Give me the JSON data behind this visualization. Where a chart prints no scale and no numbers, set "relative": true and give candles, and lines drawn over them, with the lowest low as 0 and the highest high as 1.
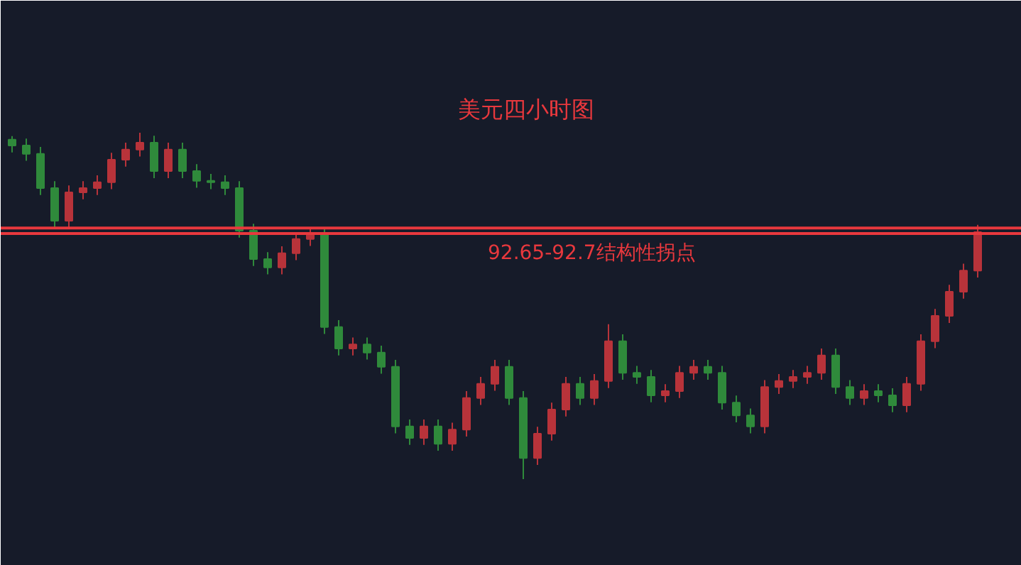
{
  "chart_data": {
    "type": "candlestick",
    "title": "美元四小时图",
    "relative": true,
    "annotations": [
      "92.65-92.7结构性拐点"
    ],
    "categories": [
      null,
      null,
      null,
      null,
      null,
      null,
      null,
      null,
      null,
      null,
      null,
      null,
      null,
      null,
      null,
      null,
      null,
      null,
      null,
      null,
      null,
      null,
      null,
      null,
      null,
      null,
      null,
      null,
      null,
      null,
      null,
      null,
      null,
      null,
      null,
      null,
      null,
      null,
      null,
      null,
      null,
      null,
      null,
      null,
      null,
      null,
      null,
      null,
      null,
      null,
      null,
      null,
      null,
      null,
      null,
      null,
      null,
      null,
      null,
      null,
      null,
      null,
      null,
      null,
      null,
      null,
      null,
      null,
      null
    ],
    "ohlc": [
      [
        0.98,
        0.99,
        0.943,
        0.963
      ],
      [
        0.963,
        0.983,
        0.919,
        0.939
      ],
      [
        0.939,
        0.959,
        0.82,
        0.84
      ],
      [
        0.84,
        0.86,
        0.726,
        0.746
      ],
      [
        0.746,
        0.848,
        0.726,
        0.828
      ],
      [
        0.828,
        0.86,
        0.808,
        0.84
      ],
      [
        0.84,
        0.877,
        0.82,
        0.857
      ],
      [
        0.857,
        0.942,
        0.837,
        0.922
      ],
      [
        0.922,
        0.971,
        0.902,
        0.951
      ],
      [
        0.951,
        1.0,
        0.931,
        0.971
      ],
      [
        0.971,
        0.991,
        0.869,
        0.889
      ],
      [
        0.889,
        0.971,
        0.869,
        0.951
      ],
      [
        0.951,
        0.971,
        0.869,
        0.889
      ],
      [
        0.889,
        0.909,
        0.841,
        0.861
      ],
      [
        0.861,
        0.881,
        0.837,
        0.857
      ],
      [
        0.857,
        0.877,
        0.82,
        0.84
      ],
      [
        0.84,
        0.86,
        0.697,
        0.717
      ],
      [
        0.717,
        0.737,
        0.615,
        0.635
      ],
      [
        0.635,
        0.655,
        0.591,
        0.611
      ],
      [
        0.611,
        0.672,
        0.591,
        0.652
      ],
      [
        0.652,
        0.713,
        0.632,
        0.693
      ],
      [
        0.693,
        0.725,
        0.673,
        0.705
      ],
      [
        0.705,
        0.725,
        0.419,
        0.439
      ],
      [
        0.439,
        0.459,
        0.357,
        0.377
      ],
      [
        0.377,
        0.409,
        0.357,
        0.389
      ],
      [
        0.389,
        0.409,
        0.345,
        0.365
      ],
      [
        0.365,
        0.385,
        0.304,
        0.324
      ],
      [
        0.324,
        0.344,
        0.132,
        0.152
      ],
      [
        0.152,
        0.172,
        0.099,
        0.119
      ],
      [
        0.119,
        0.172,
        0.099,
        0.152
      ],
      [
        0.152,
        0.172,
        0.082,
        0.102
      ],
      [
        0.102,
        0.163,
        0.082,
        0.143
      ],
      [
        0.143,
        0.254,
        0.123,
        0.234
      ],
      [
        0.234,
        0.295,
        0.214,
        0.275
      ],
      [
        0.275,
        0.344,
        0.255,
        0.324
      ],
      [
        0.324,
        0.344,
        0.214,
        0.234
      ],
      [
        0.234,
        0.254,
        0.0,
        0.061
      ],
      [
        0.061,
        0.151,
        0.041,
        0.131
      ],
      [
        0.131,
        0.221,
        0.111,
        0.201
      ],
      [
        0.201,
        0.295,
        0.181,
        0.275
      ],
      [
        0.275,
        0.295,
        0.214,
        0.234
      ],
      [
        0.234,
        0.303,
        0.214,
        0.283
      ],
      [
        0.283,
        0.447,
        0.263,
        0.398
      ],
      [
        0.398,
        0.418,
        0.287,
        0.307
      ],
      [
        0.307,
        0.327,
        0.275,
        0.295
      ],
      [
        0.295,
        0.315,
        0.222,
        0.242
      ],
      [
        0.242,
        0.274,
        0.222,
        0.254
      ],
      [
        0.254,
        0.327,
        0.234,
        0.307
      ],
      [
        0.307,
        0.344,
        0.287,
        0.324
      ],
      [
        0.324,
        0.344,
        0.287,
        0.307
      ],
      [
        0.307,
        0.327,
        0.201,
        0.221
      ],
      [
        0.221,
        0.241,
        0.164,
        0.184
      ],
      [
        0.184,
        0.204,
        0.132,
        0.152
      ],
      [
        0.152,
        0.286,
        0.132,
        0.266
      ],
      [
        0.266,
        0.303,
        0.246,
        0.283
      ],
      [
        0.283,
        0.315,
        0.263,
        0.295
      ],
      [
        0.295,
        0.327,
        0.275,
        0.307
      ],
      [
        0.307,
        0.377,
        0.287,
        0.357
      ],
      [
        0.357,
        0.377,
        0.246,
        0.266
      ],
      [
        0.266,
        0.286,
        0.214,
        0.234
      ],
      [
        0.234,
        0.274,
        0.214,
        0.254
      ],
      [
        0.254,
        0.274,
        0.222,
        0.242
      ],
      [
        0.242,
        0.262,
        0.193,
        0.213
      ],
      [
        0.213,
        0.295,
        0.193,
        0.275
      ],
      [
        0.275,
        0.418,
        0.255,
        0.398
      ],
      [
        0.398,
        0.491,
        0.378,
        0.471
      ],
      [
        0.471,
        0.561,
        0.451,
        0.541
      ],
      [
        0.541,
        0.622,
        0.521,
        0.602
      ],
      [
        0.602,
        0.734,
        0.582,
        0.713
      ]
    ],
    "colors": [
      "#2f8a3b",
      "#2f8a3b",
      "#2f8a3b",
      "#2f8a3b",
      "#b8333a",
      "#b8333a",
      "#b8333a",
      "#b8333a",
      "#b8333a",
      "#b8333a",
      "#2f8a3b",
      "#b8333a",
      "#2f8a3b",
      "#2f8a3b",
      "#2f8a3b",
      "#2f8a3b",
      "#2f8a3b",
      "#2f8a3b",
      "#2f8a3b",
      "#b8333a",
      "#b8333a",
      "#b8333a",
      "#2f8a3b",
      "#2f8a3b",
      "#b8333a",
      "#2f8a3b",
      "#2f8a3b",
      "#2f8a3b",
      "#2f8a3b",
      "#b8333a",
      "#2f8a3b",
      "#b8333a",
      "#b8333a",
      "#b8333a",
      "#b8333a",
      "#2f8a3b",
      "#2f8a3b",
      "#b8333a",
      "#b8333a",
      "#b8333a",
      "#2f8a3b",
      "#b8333a",
      "#b8333a",
      "#2f8a3b",
      "#2f8a3b",
      "#2f8a3b",
      "#b8333a",
      "#b8333a",
      "#b8333a",
      "#2f8a3b",
      "#2f8a3b",
      "#2f8a3b",
      "#2f8a3b",
      "#b8333a",
      "#b8333a",
      "#b8333a",
      "#b8333a",
      "#b8333a",
      "#2f8a3b",
      "#2f8a3b",
      "#b8333a",
      "#2f8a3b",
      "#2f8a3b",
      "#b8333a",
      "#b8333a",
      "#b8333a",
      "#b8333a",
      "#b8333a",
      "#b8333a"
    ],
    "ref_lines": [
      {
        "axis": "y",
        "value": 0.709,
        "color": "#e8383d"
      },
      {
        "axis": "y",
        "value": 0.725,
        "color": "#e8383d"
      }
    ]
  }
}
